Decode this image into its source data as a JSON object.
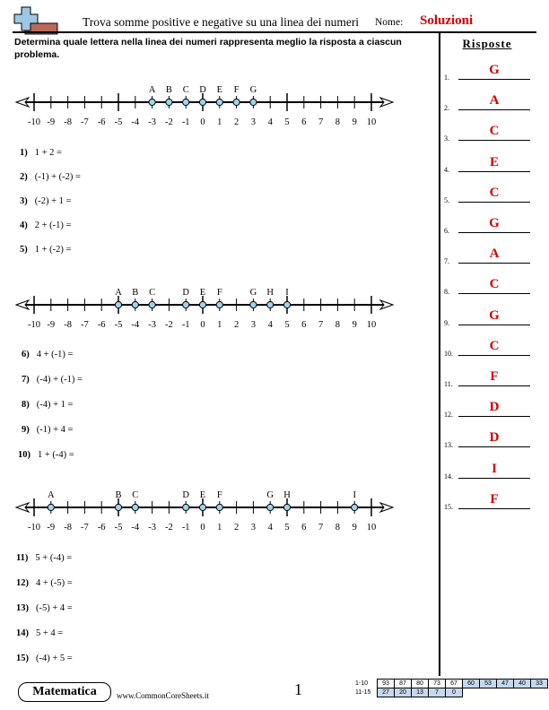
{
  "header": {
    "title": "Trova somme positive e negative su una linea dei numeri",
    "name_label": "Nome:",
    "name_value": "Soluzioni"
  },
  "instructions": "Determina quale lettera nella linea dei numeri rappresenta meglio la risposta a ciascun problema.",
  "answers": {
    "title": "Risposte",
    "items": [
      {
        "num": "1.",
        "value": "G"
      },
      {
        "num": "2.",
        "value": "A"
      },
      {
        "num": "3.",
        "value": "C"
      },
      {
        "num": "4.",
        "value": "E"
      },
      {
        "num": "5.",
        "value": "C"
      },
      {
        "num": "6.",
        "value": "G"
      },
      {
        "num": "7.",
        "value": "A"
      },
      {
        "num": "8.",
        "value": "C"
      },
      {
        "num": "9.",
        "value": "G"
      },
      {
        "num": "10.",
        "value": "C"
      },
      {
        "num": "11.",
        "value": "F"
      },
      {
        "num": "12.",
        "value": "D"
      },
      {
        "num": "13.",
        "value": "D"
      },
      {
        "num": "14.",
        "value": "I"
      },
      {
        "num": "15.",
        "value": "F"
      }
    ]
  },
  "number_lines": [
    {
      "ticks": [
        "-10",
        "-9",
        "-8",
        "-7",
        "-6",
        "-5",
        "-4",
        "-3",
        "-2",
        "-1",
        "0",
        "1",
        "2",
        "3",
        "4",
        "5",
        "6",
        "7",
        "8",
        "9",
        "10"
      ],
      "points": [
        {
          "label": "A",
          "value": -3
        },
        {
          "label": "B",
          "value": -2
        },
        {
          "label": "C",
          "value": -1
        },
        {
          "label": "D",
          "value": 0
        },
        {
          "label": "E",
          "value": 1
        },
        {
          "label": "F",
          "value": 2
        },
        {
          "label": "G",
          "value": 3
        }
      ]
    },
    {
      "ticks": [
        "-10",
        "-9",
        "-8",
        "-7",
        "-6",
        "-5",
        "-4",
        "-3",
        "-2",
        "-1",
        "0",
        "1",
        "2",
        "3",
        "4",
        "5",
        "6",
        "7",
        "8",
        "9",
        "10"
      ],
      "points": [
        {
          "label": "A",
          "value": -5
        },
        {
          "label": "B",
          "value": -4
        },
        {
          "label": "C",
          "value": -3
        },
        {
          "label": "D",
          "value": -1
        },
        {
          "label": "E",
          "value": 0
        },
        {
          "label": "F",
          "value": 1
        },
        {
          "label": "G",
          "value": 3
        },
        {
          "label": "H",
          "value": 4
        },
        {
          "label": "I",
          "value": 5
        }
      ]
    },
    {
      "ticks": [
        "-10",
        "-9",
        "-8",
        "-7",
        "-6",
        "-5",
        "-4",
        "-3",
        "-2",
        "-1",
        "0",
        "1",
        "2",
        "3",
        "4",
        "5",
        "6",
        "7",
        "8",
        "9",
        "10"
      ],
      "points": [
        {
          "label": "A",
          "value": -9
        },
        {
          "label": "B",
          "value": -5
        },
        {
          "label": "C",
          "value": -4
        },
        {
          "label": "D",
          "value": -1
        },
        {
          "label": "E",
          "value": 0
        },
        {
          "label": "F",
          "value": 1
        },
        {
          "label": "G",
          "value": 4
        },
        {
          "label": "H",
          "value": 5
        },
        {
          "label": "I",
          "value": 9
        }
      ]
    }
  ],
  "problems": [
    {
      "num": "1)",
      "expr": "1 + 2 ="
    },
    {
      "num": "2)",
      "expr": "(-1) + (-2) ="
    },
    {
      "num": "3)",
      "expr": "(-2) + 1 ="
    },
    {
      "num": "4)",
      "expr": "2 + (-1) ="
    },
    {
      "num": "5)",
      "expr": "1 + (-2) ="
    },
    {
      "num": "6)",
      "expr": "4 + (-1) ="
    },
    {
      "num": "7)",
      "expr": "(-4) + (-1) ="
    },
    {
      "num": "8)",
      "expr": "(-4) + 1 ="
    },
    {
      "num": "9)",
      "expr": "(-1) + 4 ="
    },
    {
      "num": "10)",
      "expr": "1 + (-4) ="
    },
    {
      "num": "11)",
      "expr": "5 + (-4) ="
    },
    {
      "num": "12)",
      "expr": "4 + (-5) ="
    },
    {
      "num": "13)",
      "expr": "(-5) + 4 ="
    },
    {
      "num": "14)",
      "expr": "5 + 4 ="
    },
    {
      "num": "15)",
      "expr": "(-4) + 5 ="
    }
  ],
  "footer": {
    "brand": "Matematica",
    "website": "www.CommonCoreSheets.it",
    "page": "1",
    "stats": [
      {
        "label": "1-10",
        "cells": [
          "93",
          "87",
          "80",
          "73",
          "67",
          "60",
          "53",
          "47",
          "40",
          "33"
        ]
      },
      {
        "label": "11-15",
        "cells": [
          "27",
          "20",
          "13",
          "7",
          "0"
        ]
      }
    ]
  }
}
